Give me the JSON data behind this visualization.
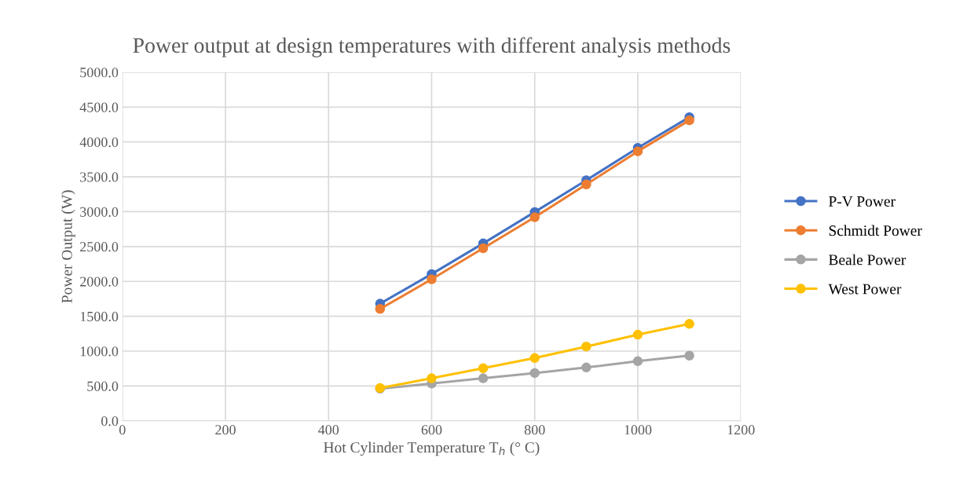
{
  "chart_data": {
    "type": "line",
    "title": "Power output at design temperatures with different analysis methods",
    "xlabel": "Hot Cylinder Temperature T$_{h}$ (° C)",
    "ylabel": "Power Output (W)",
    "x": [
      500,
      600,
      700,
      800,
      900,
      1000,
      1100
    ],
    "series": [
      {
        "name": "P-V Power",
        "color": "#4472c4",
        "values": [
          1680,
          2105,
          2545,
          2995,
          3450,
          3915,
          4355
        ]
      },
      {
        "name": "Schmidt Power",
        "color": "#ed7d31",
        "values": [
          1605,
          2030,
          2475,
          2920,
          3390,
          3865,
          4310
        ]
      },
      {
        "name": "Beale Power",
        "color": "#a5a5a5",
        "values": [
          460,
          535,
          610,
          685,
          765,
          855,
          935
        ]
      },
      {
        "name": "West Power",
        "color": "#ffc000",
        "values": [
          470,
          610,
          755,
          900,
          1065,
          1235,
          1390
        ]
      }
    ],
    "xlim": [
      0,
      1200
    ],
    "xticks": [
      0,
      200,
      400,
      600,
      800,
      1000,
      1200
    ],
    "ylim": [
      0,
      5000
    ],
    "yticks": [
      {
        "value": 0,
        "label": "0.0"
      },
      {
        "value": 500,
        "label": "500.0"
      },
      {
        "value": 1000,
        "label": "1000.0"
      },
      {
        "value": 1500,
        "label": "1500.0"
      },
      {
        "value": 2000,
        "label": "2000.0"
      },
      {
        "value": 2500,
        "label": "2500.0"
      },
      {
        "value": 3000,
        "label": "3000.0"
      },
      {
        "value": 3500,
        "label": "3500.0"
      },
      {
        "value": 4000,
        "label": "4000.0"
      },
      {
        "value": 4500,
        "label": "4500.0"
      },
      {
        "value": 5000,
        "label": "5000.0"
      }
    ],
    "grid": true,
    "legend": "right",
    "marker": "circle",
    "line_style": "solid"
  }
}
